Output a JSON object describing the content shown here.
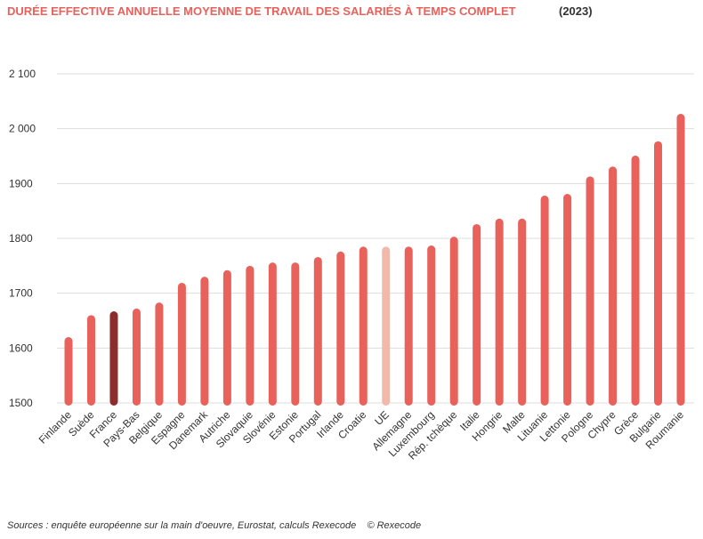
{
  "chart_data": {
    "type": "bar",
    "title": "DURÉE EFFECTIVE ANNUELLE MOYENNE DE TRAVAIL DES SALARIÉS À TEMPS COMPLET",
    "subtitle": "(2023)",
    "categories": [
      "Finlande",
      "Suède",
      "France",
      "Pays-Bas",
      "Belgique",
      "Espagne",
      "Danemark",
      "Autriche",
      "Slovaquie",
      "Slovénie",
      "Estonie",
      "Portugal",
      "Irlande",
      "Croatie",
      "UE",
      "Allemagne",
      "Luxembourg",
      "Rép. tchèque",
      "Italie",
      "Hongrie",
      "Malte",
      "Lituanie",
      "Lettonie",
      "Pologne",
      "Chypre",
      "Grèce",
      "Bulgarie",
      "Roumanie"
    ],
    "values": [
      1620,
      1660,
      1667,
      1672,
      1683,
      1719,
      1730,
      1742,
      1750,
      1756,
      1756,
      1766,
      1776,
      1785,
      1785,
      1785,
      1787,
      1803,
      1826,
      1836,
      1836,
      1878,
      1881,
      1913,
      1931,
      1951,
      1977,
      2027
    ],
    "colors": [
      "#e8615a",
      "#e8615a",
      "#8b2e2b",
      "#e8615a",
      "#e8615a",
      "#e8615a",
      "#e8615a",
      "#e8615a",
      "#e8615a",
      "#e8615a",
      "#e8615a",
      "#e8615a",
      "#e8615a",
      "#e8615a",
      "#f2b8aa",
      "#e8615a",
      "#e8615a",
      "#e8615a",
      "#e8615a",
      "#e8615a",
      "#e8615a",
      "#e8615a",
      "#e8615a",
      "#e8615a",
      "#e8615a",
      "#e8615a",
      "#e8615a",
      "#e8615a"
    ],
    "ylim": [
      1500,
      2100
    ],
    "yticks": [
      1500,
      1600,
      1700,
      1800,
      1900,
      {
        "value": 2000,
        "label": "2 000"
      },
      {
        "value": 2100,
        "label": "2 100"
      }
    ],
    "grid": true,
    "source": "Sources : enquête européenne sur la main d'oeuvre, Eurostat, calculs Rexecode    © Rexecode"
  }
}
